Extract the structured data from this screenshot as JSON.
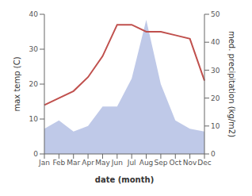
{
  "chart_data": {
    "type": "line",
    "xlabel": "date (month)",
    "ylabel": "max temp (C)",
    "y2label": "med. precipitation (kg/m2)",
    "categories": [
      "Jan",
      "Feb",
      "Mar",
      "Apr",
      "May",
      "Jun",
      "Jul",
      "Aug",
      "Sep",
      "Oct",
      "Nov",
      "Dec"
    ],
    "series": [
      {
        "type": "area",
        "color": "#bfc9e8",
        "axis": "y2",
        "values": [
          9,
          12,
          8,
          10,
          17,
          17,
          27,
          48,
          25,
          12,
          9,
          8
        ]
      },
      {
        "type": "line",
        "color": "#c0504d",
        "values": [
          14,
          16,
          18,
          22,
          28,
          37,
          37,
          35,
          35,
          34,
          33,
          21
        ]
      }
    ],
    "ylim": [
      0,
      40
    ],
    "yticks": [
      0,
      10,
      20,
      30,
      40
    ],
    "y2lim": [
      0,
      50
    ],
    "y2ticks": [
      0,
      10,
      20,
      30,
      40,
      50
    ],
    "grid": false
  }
}
